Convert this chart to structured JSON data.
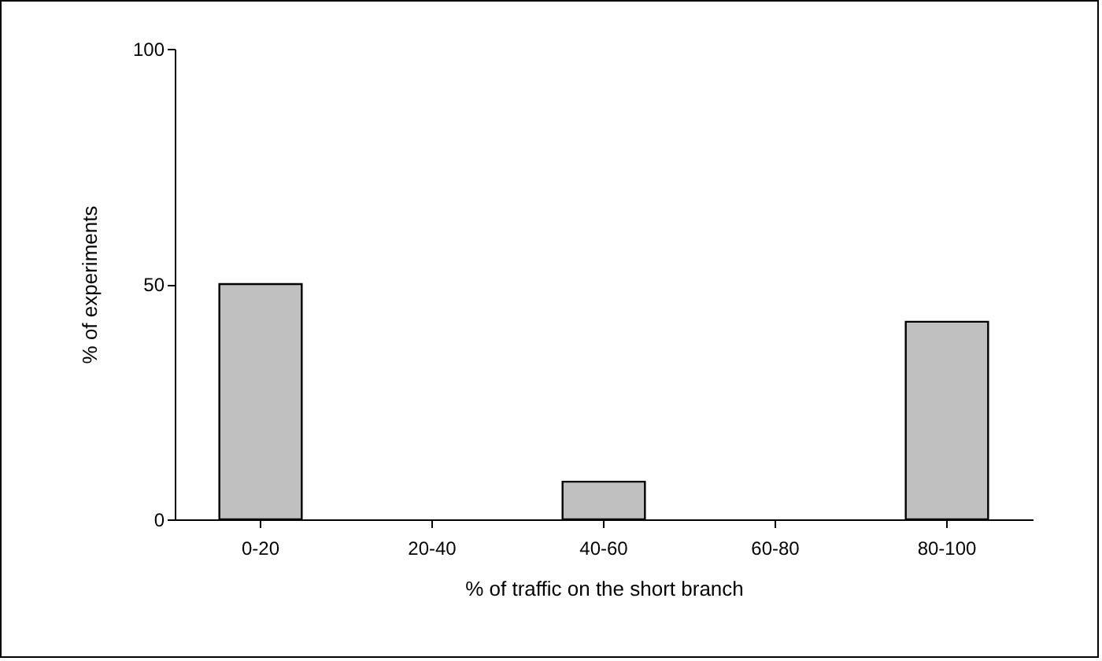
{
  "chart_data": {
    "type": "bar",
    "xlabel": "% of traffic on the short branch",
    "ylabel": "% of experiments",
    "categories": [
      "0-20",
      "20-40",
      "40-60",
      "60-80",
      "80-100"
    ],
    "values": [
      50,
      0,
      8,
      0,
      42
    ],
    "color": "#c0c0c0",
    "ylim": [
      0,
      100
    ],
    "yticks": [
      0,
      50,
      100
    ],
    "grid": false
  }
}
